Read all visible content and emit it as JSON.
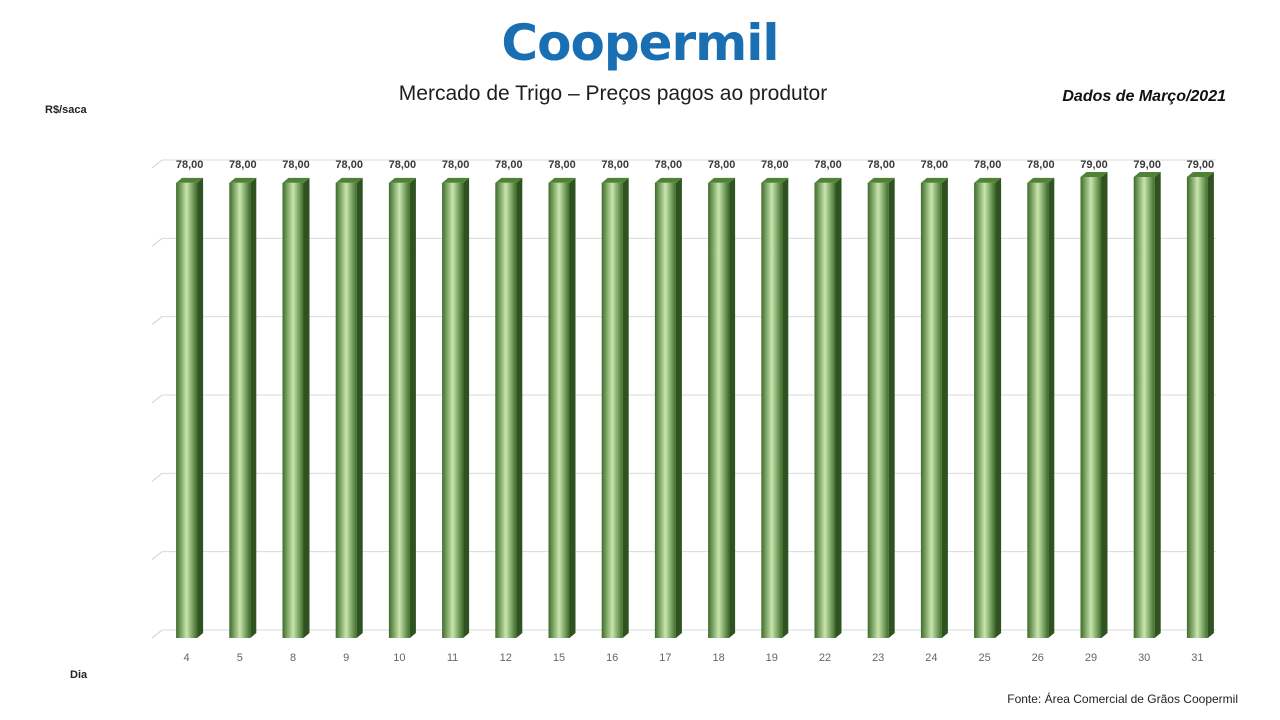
{
  "header": {
    "logo_text": "Coopermil",
    "title": "Mercado de Trigo – Preços pagos ao produtor",
    "subtitle": "Dados de Março/2021"
  },
  "axes": {
    "y_unit": "R$/saca",
    "x_title": "Dia"
  },
  "footer": {
    "source": "Fonte:  Área Comercial de Grãos Coopermil"
  },
  "colors": {
    "bar_dark": "#3e6b2a",
    "bar_light": "#c8e6ad",
    "logo": "#1a6fb3"
  },
  "chart_data": {
    "type": "bar",
    "title": "Mercado de Trigo – Preços pagos ao produtor",
    "xlabel": "Dia",
    "ylabel": "R$/saca",
    "categories": [
      "4",
      "5",
      "8",
      "9",
      "10",
      "11",
      "12",
      "15",
      "16",
      "17",
      "18",
      "19",
      "22",
      "23",
      "24",
      "25",
      "26",
      "29",
      "30",
      "31"
    ],
    "values": [
      78,
      78,
      78,
      78,
      78,
      78,
      78,
      78,
      78,
      78,
      78,
      78,
      78,
      78,
      78,
      78,
      78,
      79,
      79,
      79
    ],
    "data_labels": [
      "78,00",
      "78,00",
      "78,00",
      "78,00",
      "78,00",
      "78,00",
      "78,00",
      "78,00",
      "78,00",
      "78,00",
      "78,00",
      "78,00",
      "78,00",
      "78,00",
      "78,00",
      "78,00",
      "78,00",
      "79,00",
      "79,00",
      "79,00"
    ],
    "ylim": [
      0,
      79
    ],
    "grid": true,
    "legend": "none"
  }
}
